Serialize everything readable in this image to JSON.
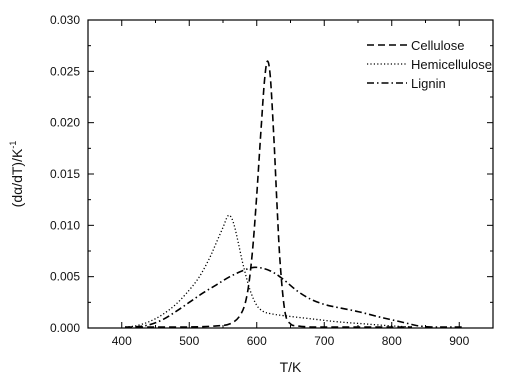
{
  "chart_data": {
    "type": "line",
    "title": "",
    "xlabel": "T/K",
    "ylabel": "(dα/dT)/K",
    "ylabel_superscript": "-1",
    "xlim": [
      350,
      950
    ],
    "ylim": [
      0,
      0.03
    ],
    "x_ticks": [
      "400",
      "500",
      "600",
      "700",
      "800",
      "900"
    ],
    "y_ticks": [
      "0.000",
      "0.005",
      "0.010",
      "0.015",
      "0.020",
      "0.025",
      "0.030"
    ],
    "grid": false,
    "legend_position": "top-right",
    "series": [
      {
        "name": "Cellulose",
        "line_style": "dashed",
        "color": "#000000",
        "x": [
          405,
          450,
          500,
          540,
          560,
          575,
          585,
          593,
          600,
          607,
          612,
          616,
          620,
          625,
          630,
          635,
          642,
          650,
          660,
          680,
          700,
          750,
          800,
          830
        ],
        "y": [
          0.0001,
          0.0001,
          0.0001,
          0.0002,
          0.0004,
          0.0012,
          0.003,
          0.007,
          0.013,
          0.02,
          0.0245,
          0.026,
          0.0245,
          0.019,
          0.012,
          0.006,
          0.0015,
          0.0004,
          0.0002,
          0.0001,
          0.0001,
          0.0001,
          0.0001,
          0.0001
        ]
      },
      {
        "name": "Hemicellulose",
        "line_style": "dotted",
        "color": "#000000",
        "x": [
          405,
          420,
          440,
          460,
          480,
          500,
          515,
          530,
          540,
          550,
          557,
          562,
          567,
          573,
          580,
          590,
          600,
          610,
          620,
          640,
          680,
          720,
          760,
          800,
          830
        ],
        "y": [
          0.0001,
          0.0002,
          0.0006,
          0.0013,
          0.0023,
          0.0037,
          0.005,
          0.0068,
          0.0083,
          0.0098,
          0.0109,
          0.0108,
          0.0099,
          0.0082,
          0.0061,
          0.0037,
          0.0022,
          0.0016,
          0.0014,
          0.0012,
          0.0009,
          0.0006,
          0.0004,
          0.0002,
          0.0001
        ]
      },
      {
        "name": "Lignin",
        "line_style": "dash-dot",
        "color": "#000000",
        "x": [
          420,
          440,
          460,
          480,
          500,
          520,
          540,
          560,
          580,
          595,
          610,
          625,
          640,
          660,
          680,
          700,
          720,
          750,
          780,
          800,
          820,
          840,
          860,
          880,
          905
        ],
        "y": [
          0.0001,
          0.0003,
          0.0008,
          0.0016,
          0.0025,
          0.0034,
          0.0042,
          0.005,
          0.0056,
          0.0059,
          0.0058,
          0.0054,
          0.0047,
          0.0036,
          0.0028,
          0.0023,
          0.002,
          0.0016,
          0.0011,
          0.0008,
          0.0005,
          0.0002,
          0.0001,
          0.0001,
          0.0001
        ]
      }
    ]
  }
}
